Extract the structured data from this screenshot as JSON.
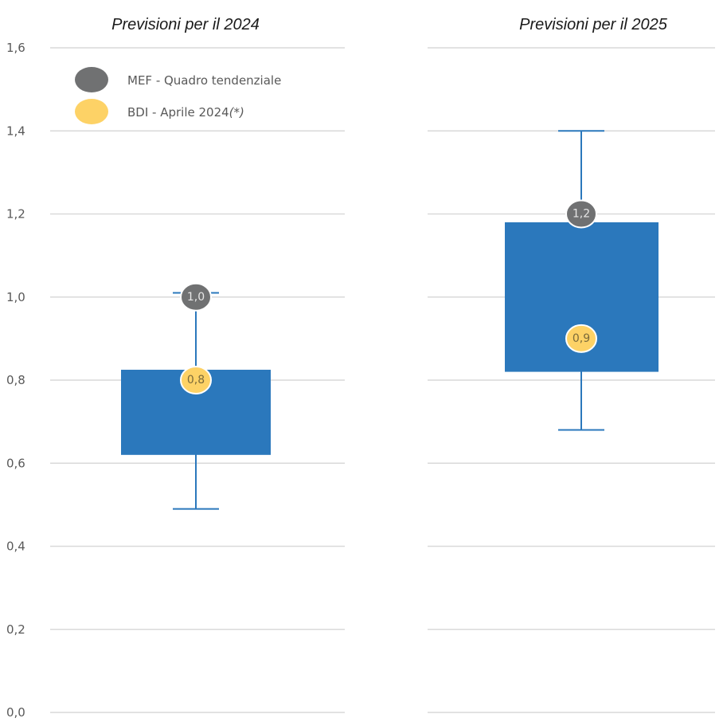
{
  "colors": {
    "box": "#2b78bc",
    "whisker": "#2b78bc",
    "mef": "#707172",
    "bdi": "#fdd266",
    "grid": "#d9d9d9",
    "mef_label": "#e6e6e6",
    "bdi_label": "#7a6a3a"
  },
  "legend": {
    "placement": "top-left",
    "mef": "MEF - Quadro tendenziale",
    "bdi": "BDI - Aprile 2024",
    "bdi_note": "(*)"
  },
  "chart_data": {
    "type": "box",
    "ylim": [
      0,
      1.6
    ],
    "y_ticks": [
      "0,0",
      "0,2",
      "0,4",
      "0,6",
      "0,8",
      "1,0",
      "1,2",
      "1,4",
      "1,6"
    ],
    "y_tick_values": [
      0,
      0.2,
      0.4,
      0.6,
      0.8,
      1.0,
      1.2,
      1.4,
      1.6
    ],
    "panels": [
      {
        "title": "Previsioni per il 2024",
        "whisker_low": 0.49,
        "box_low": 0.62,
        "box_high": 0.825,
        "whisker_high": 1.01,
        "mef": 1.0,
        "mef_label": "1,0",
        "bdi": 0.8,
        "bdi_label": "0,8"
      },
      {
        "title": "Previsioni per il 2025",
        "whisker_low": 0.68,
        "box_low": 0.82,
        "box_high": 1.18,
        "whisker_high": 1.4,
        "mef": 1.2,
        "mef_label": "1,2",
        "bdi": 0.9,
        "bdi_label": "0,9"
      }
    ]
  }
}
